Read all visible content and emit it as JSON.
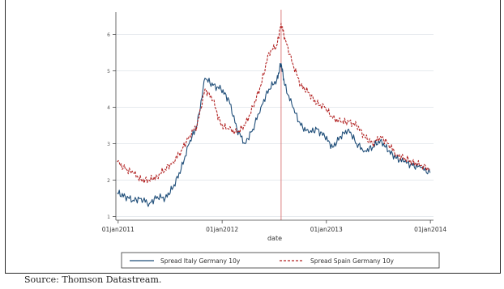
{
  "source_note": "Source: Thomson Datastream.",
  "colors": {
    "italy": "#1f4e79",
    "spain": "#b22222",
    "event_line": "#d87070",
    "grid": "#e6eaee",
    "axis": "#444444"
  },
  "chart_data": {
    "type": "line",
    "title": "",
    "xlabel": "date",
    "ylabel": "",
    "x_tick_labels": [
      "01jan2011",
      "01jan2012",
      "01jan2013",
      "01jan2014"
    ],
    "x_ticks": [
      "2011-01-01",
      "2012-01-01",
      "2013-01-01",
      "2014-01-01"
    ],
    "y_ticks": [
      1,
      2,
      3,
      4,
      5,
      6
    ],
    "ylim": [
      0.9,
      6.5
    ],
    "xlim": [
      "2010-12-24",
      "2014-01-12"
    ],
    "grid": true,
    "legend_position": "bottom",
    "vertical_line": {
      "x": "2012-07-26",
      "color": "#d87070"
    },
    "x": [
      "2010-12-29",
      "2011-01-26",
      "2011-02-23",
      "2011-03-23",
      "2011-04-20",
      "2011-05-18",
      "2011-06-15",
      "2011-07-13",
      "2011-08-10",
      "2011-09-07",
      "2011-10-05",
      "2011-11-02",
      "2011-11-30",
      "2011-12-28",
      "2012-01-25",
      "2012-02-22",
      "2012-03-21",
      "2012-04-18",
      "2012-05-16",
      "2012-06-13",
      "2012-07-11",
      "2012-07-26",
      "2012-08-08",
      "2012-09-05",
      "2012-10-03",
      "2012-10-31",
      "2012-11-28",
      "2012-12-26",
      "2013-01-23",
      "2013-02-20",
      "2013-03-20",
      "2013-04-17",
      "2013-05-15",
      "2013-06-12",
      "2013-07-10",
      "2013-08-07",
      "2013-09-04",
      "2013-10-02",
      "2013-10-30",
      "2013-11-27",
      "2013-12-31"
    ],
    "series": [
      {
        "name": "Spread Italy Germany 10y",
        "color": "#1f4e79",
        "values": [
          1.65,
          1.55,
          1.45,
          1.5,
          1.35,
          1.55,
          1.5,
          1.8,
          2.3,
          3.0,
          3.5,
          4.8,
          4.6,
          4.5,
          4.2,
          3.4,
          3.0,
          3.4,
          4.0,
          4.5,
          4.75,
          5.2,
          4.6,
          4.0,
          3.5,
          3.3,
          3.4,
          3.2,
          2.9,
          3.2,
          3.4,
          3.0,
          2.8,
          2.9,
          3.1,
          2.8,
          2.6,
          2.5,
          2.4,
          2.35,
          2.2
        ]
      },
      {
        "name": "Spread Spain Germany 10y",
        "color": "#b22222",
        "values": [
          2.5,
          2.3,
          2.2,
          2.0,
          2.0,
          2.1,
          2.3,
          2.5,
          2.8,
          3.2,
          3.5,
          4.5,
          4.2,
          3.5,
          3.4,
          3.3,
          3.5,
          4.0,
          4.6,
          5.5,
          5.7,
          6.3,
          5.9,
          5.2,
          4.6,
          4.4,
          4.1,
          4.0,
          3.7,
          3.6,
          3.6,
          3.5,
          3.2,
          3.0,
          3.2,
          3.0,
          2.7,
          2.6,
          2.5,
          2.4,
          2.3
        ]
      }
    ]
  }
}
